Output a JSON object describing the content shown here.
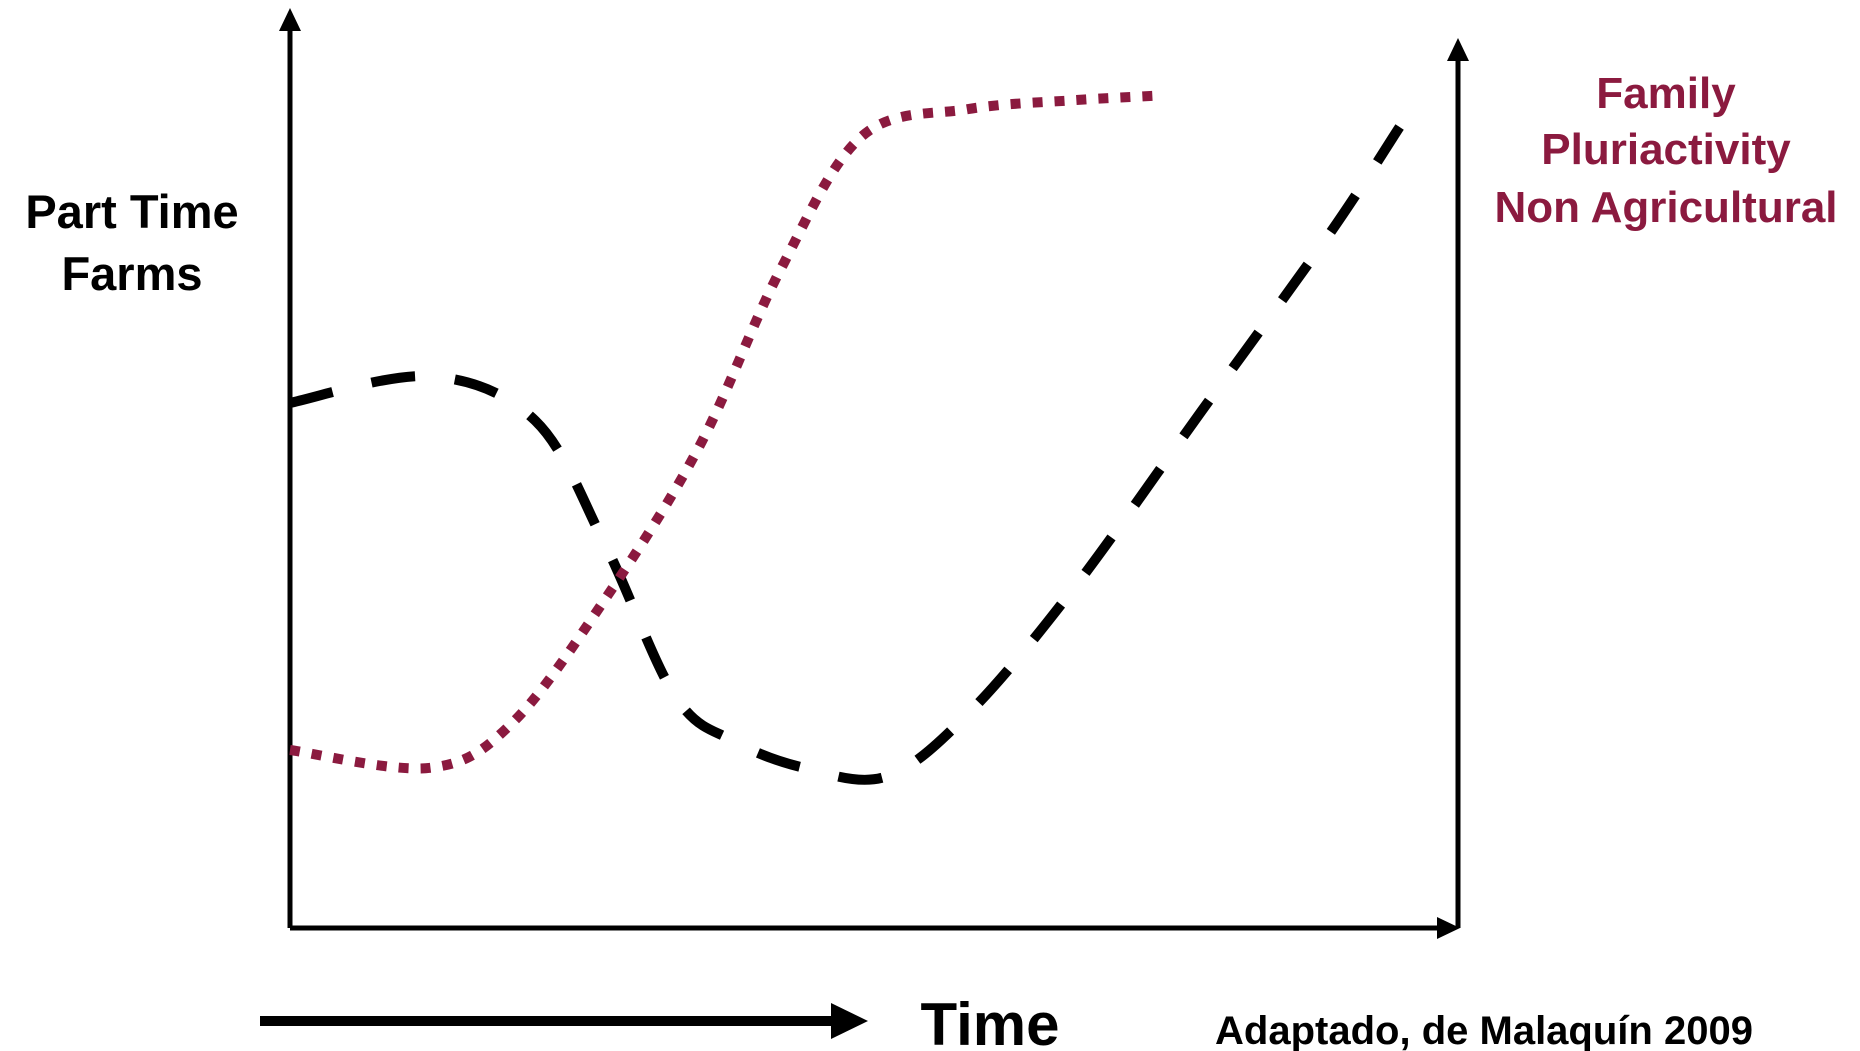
{
  "chart_data": {
    "type": "line",
    "left_axis_label": [
      "Part Time",
      "Farms"
    ],
    "right_axis_label": [
      "Family",
      "Pluriactivity",
      "Non Agricultural"
    ],
    "time_label": "Time",
    "source_note": "Adaptado, de Malaquín 2009",
    "series": [
      {
        "style": "dashed",
        "color": "#000000",
        "points": [
          [
            0.0,
            0.59
          ],
          [
            0.12,
            0.62
          ],
          [
            0.21,
            0.57
          ],
          [
            0.27,
            0.43
          ],
          [
            0.33,
            0.26
          ],
          [
            0.38,
            0.21
          ],
          [
            0.44,
            0.18
          ],
          [
            0.51,
            0.17
          ],
          [
            0.58,
            0.24
          ],
          [
            0.67,
            0.38
          ],
          [
            0.78,
            0.58
          ],
          [
            0.89,
            0.78
          ],
          [
            0.95,
            0.9
          ]
        ]
      },
      {
        "style": "dotted",
        "color": "#8b1a3f",
        "points": [
          [
            0.0,
            0.2
          ],
          [
            0.12,
            0.18
          ],
          [
            0.19,
            0.23
          ],
          [
            0.27,
            0.37
          ],
          [
            0.35,
            0.54
          ],
          [
            0.42,
            0.74
          ],
          [
            0.49,
            0.89
          ],
          [
            0.58,
            0.92
          ],
          [
            0.67,
            0.93
          ],
          [
            0.74,
            0.935
          ]
        ]
      }
    ],
    "xlim": [
      0,
      1
    ],
    "ylim": [
      0,
      1
    ],
    "grid": false,
    "legend": "none",
    "colors": {
      "axis": "#000000",
      "right_label": "#8b1a3f"
    }
  }
}
